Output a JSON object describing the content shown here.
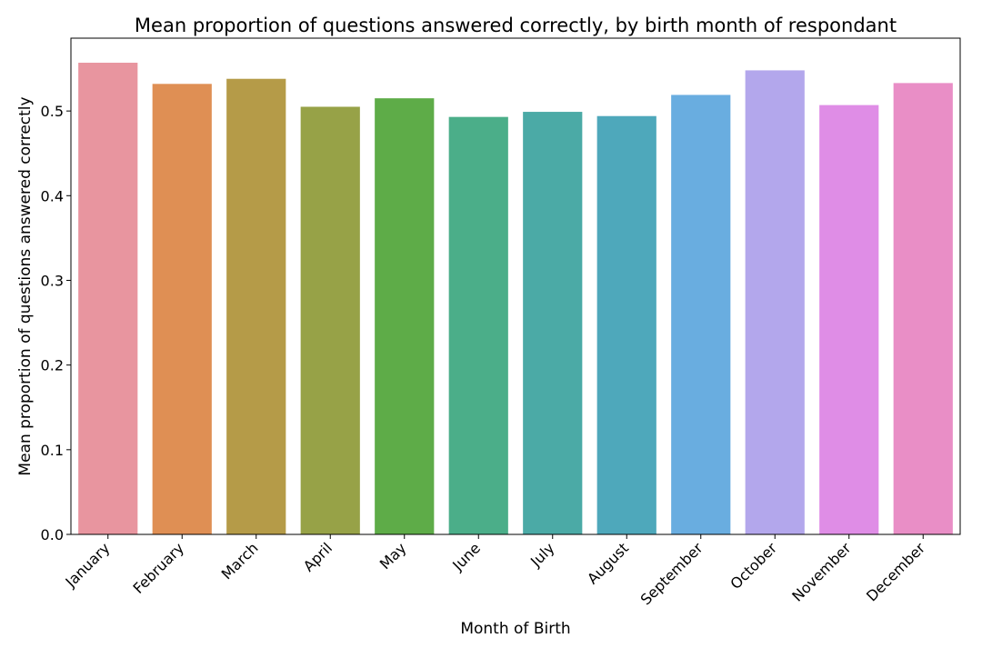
{
  "chart_data": {
    "type": "bar",
    "title": "Mean proportion of questions answered correctly, by birth month of respondant",
    "xlabel": "Month of Birth",
    "ylabel": "Mean proportion of questions answered correctly",
    "categories": [
      "January",
      "February",
      "March",
      "April",
      "May",
      "June",
      "July",
      "August",
      "September",
      "October",
      "November",
      "December"
    ],
    "values": [
      0.557,
      0.532,
      0.538,
      0.505,
      0.515,
      0.493,
      0.499,
      0.494,
      0.519,
      0.548,
      0.507,
      0.533
    ],
    "colors": [
      "#e8959f",
      "#df8f54",
      "#b59b48",
      "#97a247",
      "#5eac48",
      "#4bae89",
      "#4baaa6",
      "#4ea8bb",
      "#69ade0",
      "#b3a7ec",
      "#df8de6",
      "#e98ec6"
    ],
    "ylim": [
      0,
      0.586
    ],
    "yticks": [
      "0.0",
      "0.1",
      "0.2",
      "0.3",
      "0.4",
      "0.5"
    ],
    "ytick_values": [
      0,
      0.1,
      0.2,
      0.3,
      0.4,
      0.5
    ],
    "grid": false,
    "legend": "none"
  }
}
